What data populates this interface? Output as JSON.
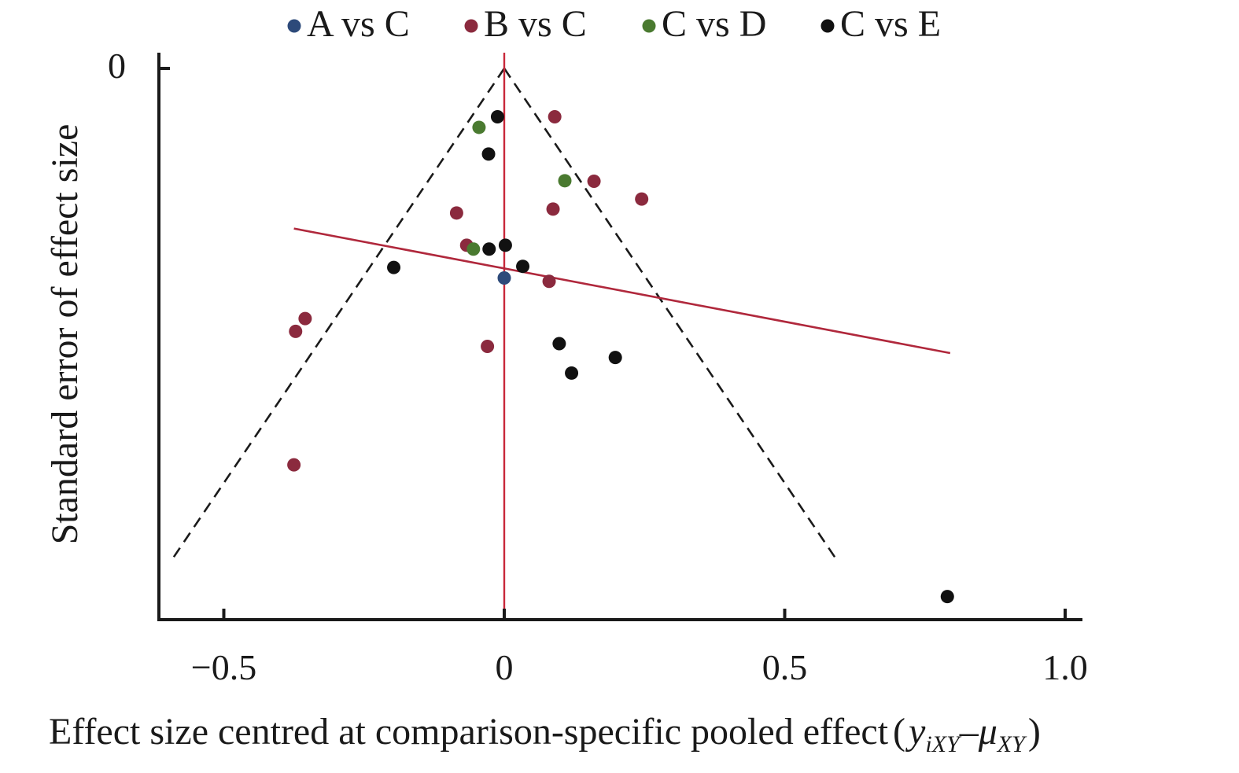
{
  "chart_data": {
    "type": "scatter",
    "xlabel": {
      "prefix": "Effect size centred at comparison-specific pooled effect",
      "open_paren": "(",
      "y_symbol": "y",
      "y_subscript": "iXY",
      "minus": "–",
      "mu_symbol": "μ",
      "mu_subscript": "XY",
      "close_paren": ")"
    },
    "ylabel": "Standard error of effect size",
    "xlim": [
      -0.6,
      1.05
    ],
    "ylim": [
      0,
      0.97
    ],
    "y_inverted": true,
    "x_ticks": [
      {
        "value": -0.5,
        "label": "−0.5"
      },
      {
        "value": 0,
        "label": "0"
      },
      {
        "value": 0.5,
        "label": "0.5"
      },
      {
        "value": 1.0,
        "label": "1.0"
      }
    ],
    "y_ticks": [
      {
        "value": 0,
        "label": "0"
      }
    ],
    "legend_position": "top",
    "grid": false,
    "series": [
      {
        "name": "A vs C",
        "color": "#2d4a7a",
        "points": [
          [
            0.0,
            0.377
          ]
        ]
      },
      {
        "name": "B vs C",
        "color": "#8b2a3e",
        "points": [
          [
            0.09,
            0.087
          ],
          [
            0.16,
            0.203
          ],
          [
            0.245,
            0.235
          ],
          [
            0.087,
            0.253
          ],
          [
            -0.085,
            0.26
          ],
          [
            -0.067,
            0.318
          ],
          [
            0.08,
            0.383
          ],
          [
            -0.355,
            0.45
          ],
          [
            -0.372,
            0.473
          ],
          [
            -0.03,
            0.5
          ],
          [
            -0.375,
            0.713
          ]
        ]
      },
      {
        "name": "C vs D",
        "color": "#4a7a30",
        "points": [
          [
            -0.045,
            0.106
          ],
          [
            0.108,
            0.202
          ],
          [
            -0.055,
            0.325
          ]
        ]
      },
      {
        "name": "C vs E",
        "color": "#111111",
        "points": [
          [
            -0.012,
            0.087
          ],
          [
            -0.028,
            0.154
          ],
          [
            0.002,
            0.318
          ],
          [
            -0.027,
            0.325
          ],
          [
            0.033,
            0.356
          ],
          [
            -0.197,
            0.358
          ],
          [
            0.098,
            0.495
          ],
          [
            0.198,
            0.52
          ],
          [
            0.12,
            0.548
          ],
          [
            0.79,
            0.95
          ]
        ]
      }
    ],
    "funnel": {
      "apex": [
        0,
        0
      ],
      "left_end": [
        -0.59,
        0.88
      ],
      "right_end": [
        0.59,
        0.88
      ],
      "color": "#1a1a1a",
      "style": "dashed"
    },
    "reference_line": {
      "x": 0,
      "color": "#c8283a"
    },
    "regression_line": {
      "start": [
        -0.375,
        0.288
      ],
      "end": [
        0.795,
        0.512
      ],
      "color": "#b0283c"
    }
  }
}
